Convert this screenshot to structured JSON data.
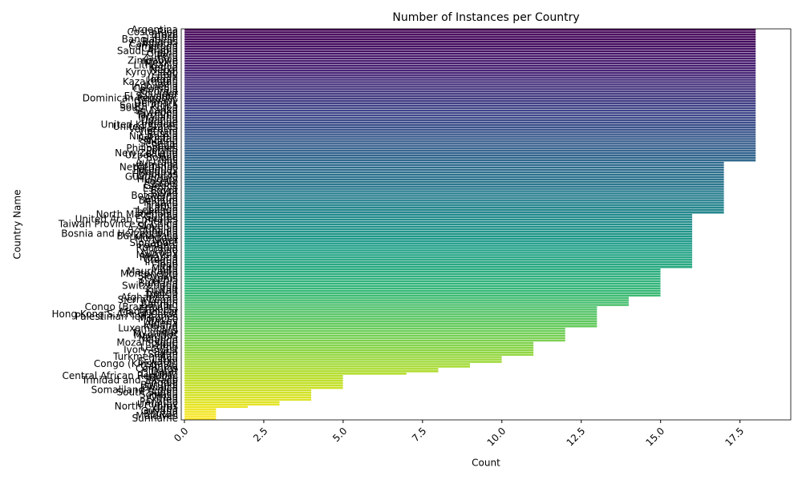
{
  "chart_data": {
    "type": "barh",
    "title": "Number of Instances per Country",
    "xlabel": "Count",
    "ylabel": "Country Name",
    "categories": [
      "Argentina",
      "Costa Rica",
      "Brazil",
      "Chile",
      "Bangladesh",
      "Belarus",
      "Cambodia",
      "Cameroon",
      "Canada",
      "Saudi Arabia",
      "Ghana",
      "Peru",
      "Zambia",
      "Zimbabwe",
      "Mexico",
      "Lithuania",
      "Kenya",
      "Nepal",
      "Kyrgyzstan",
      "Italy",
      "Japan",
      "Jordan",
      "Kazakhstan",
      "India",
      "Indonesia",
      "Colombia",
      "Georgia",
      "Ecuador",
      "El Salvador",
      "Dominican Republic",
      "Germany",
      "Denmark",
      "South Africa",
      "South Korea",
      "Sri Lanka",
      "Sweden",
      "Tanzania",
      "Thailand",
      "Uganda",
      "Ukraine",
      "United Kingdom",
      "United States",
      "Venezuela",
      "Vietnam",
      "Russia",
      "Nicaragua",
      "Pakistan",
      "Nigeria",
      "Senegal",
      "Spain",
      "Philippines",
      "Poland",
      "New Zealand",
      "Uzbekistan",
      "Bolivia",
      "Mali",
      "Australia",
      "Armenia",
      "Netherlands",
      "Paraguay",
      "Moldova",
      "Honduras",
      "Guatemala",
      "Hungary",
      "Kosovo",
      "Israel",
      "Greece",
      "Estonia",
      "Egypt",
      "Benin",
      "Botswana",
      "Austria",
      "Belgium",
      "Finland",
      "France",
      "Latvia",
      "Lebanon",
      "Tajikistan",
      "North Macedonia",
      "Guinea",
      "United Arab Emirates",
      "Serbia",
      "Taiwan Province of China",
      "Slovenia",
      "Azerbaijan",
      "Albania",
      "Bosnia and Herzegovina",
      "Burkina Faso",
      "Mongolia",
      "Niger",
      "Singapore",
      "Portugal",
      "Romania",
      "Chad",
      "Norway",
      "Malaysia",
      "Rwanda",
      "Croatia",
      "Ireland",
      "Togo",
      "Iran",
      "Malta",
      "Mauritania",
      "Montenegro",
      "Slovakia",
      "Cyprus",
      "Czechia",
      "Bulgaria",
      "Switzerland",
      "Iraq",
      "Kuwait",
      "Liberia",
      "Tunisia",
      "Afghanistan",
      "Sierra Leone",
      "Yemen",
      "Bahrain",
      "Congo (Brazzaville)",
      "Ethiopia",
      "Madagascar",
      "Hong Kong S.A.R. of China",
      "Palestinian Territories",
      "Morocco",
      "Turkey",
      "Algeria",
      "Iceland",
      "Luxembourg",
      "Laos",
      "Myanmar",
      "Mauritius",
      "Namibia",
      "Gabon",
      "Mozambique",
      "Haiti",
      "Lesotho",
      "Ivory Coast",
      "Syria",
      "Sudan",
      "Turkmenistan",
      "Libya",
      "Eswatini",
      "Congo (Kinshasa)",
      "Gambia",
      "Comoros",
      "Qatar",
      "Djibouti",
      "Central African Republic",
      "Belize",
      "Trinidad and Tobago",
      "Angola",
      "Burundi",
      "Jamaica",
      "Somaliland region",
      "South Sudan",
      "Somalia",
      "Oman",
      "Eritrea",
      "Panama",
      "Uruguay",
      "North Cyprus",
      "Cuba",
      "Guyana",
      "Bhutan",
      "Maldives",
      "Suriname"
    ],
    "values": [
      18,
      18,
      18,
      18,
      18,
      18,
      18,
      18,
      18,
      18,
      18,
      18,
      18,
      18,
      18,
      18,
      18,
      18,
      18,
      18,
      18,
      18,
      18,
      18,
      18,
      18,
      18,
      18,
      18,
      18,
      18,
      18,
      18,
      18,
      18,
      18,
      18,
      18,
      18,
      18,
      18,
      18,
      18,
      18,
      18,
      18,
      18,
      18,
      18,
      18,
      18,
      18,
      18,
      18,
      18,
      18,
      17,
      17,
      17,
      17,
      17,
      17,
      17,
      17,
      17,
      17,
      17,
      17,
      17,
      17,
      17,
      17,
      17,
      17,
      17,
      17,
      17,
      17,
      16,
      16,
      16,
      16,
      16,
      16,
      16,
      16,
      16,
      16,
      16,
      16,
      16,
      16,
      16,
      16,
      16,
      16,
      16,
      16,
      16,
      16,
      16,
      15,
      15,
      15,
      15,
      15,
      15,
      15,
      15,
      15,
      15,
      15,
      15,
      14,
      14,
      14,
      14,
      13,
      13,
      13,
      13,
      13,
      13,
      13,
      13,
      13,
      12,
      12,
      12,
      12,
      12,
      12,
      11,
      11,
      11,
      11,
      11,
      11,
      10,
      10,
      10,
      9,
      9,
      8,
      8,
      7,
      5,
      5,
      5,
      5,
      5,
      5,
      4,
      4,
      4,
      4,
      4,
      3,
      3,
      2,
      1,
      1,
      1,
      1,
      1
    ],
    "colormap": [
      "#440154",
      "#482878",
      "#3e4989",
      "#31688e",
      "#26828e",
      "#1f9e89",
      "#35b779",
      "#6ece58",
      "#b5de2b",
      "#fde725"
    ],
    "xlim": [
      -0.1,
      19.1
    ],
    "xticks": [
      {
        "value": 0,
        "label": "0.0"
      },
      {
        "value": 2.5,
        "label": "2.5"
      },
      {
        "value": 5,
        "label": "5.0"
      },
      {
        "value": 7.5,
        "label": "7.5"
      },
      {
        "value": 10,
        "label": "10.0"
      },
      {
        "value": 12.5,
        "label": "12.5"
      },
      {
        "value": 15,
        "label": "15.0"
      },
      {
        "value": 17.5,
        "label": "17.5"
      }
    ]
  }
}
